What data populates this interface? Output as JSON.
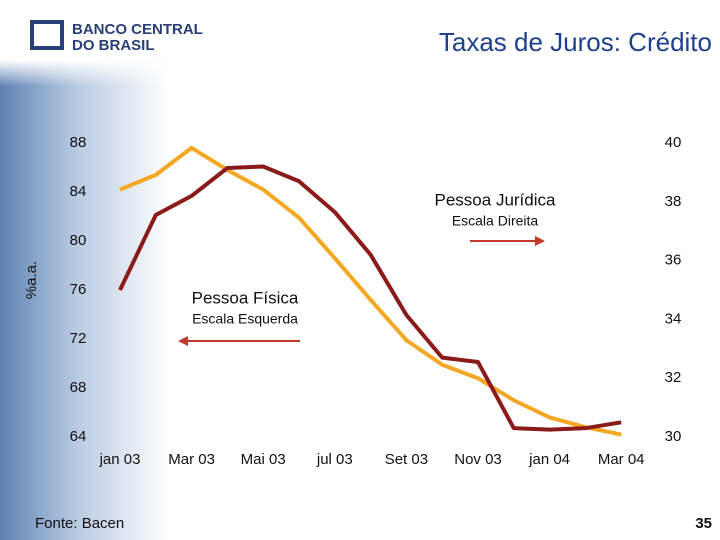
{
  "header": {
    "logo_line1": "BANCO CENTRAL",
    "logo_line2": "DO BRASIL"
  },
  "footer": {
    "source": "Fonte: Bacen",
    "page": "35"
  },
  "chart_data": {
    "type": "line",
    "title": "Taxas de Juros: Crédito",
    "ylabel": "%a.a.",
    "categories": [
      "jan 03",
      null,
      "Mar 03",
      null,
      "Mai 03",
      null,
      "jul 03",
      null,
      "Set 03",
      null,
      "Nov 03",
      null,
      "jan 04",
      null,
      "Mar 04"
    ],
    "ylim": [
      64,
      88
    ],
    "yticks": [
      64,
      68,
      72,
      76,
      80,
      84,
      88
    ],
    "y2lim": [
      30,
      40
    ],
    "y2ticks": [
      30,
      32,
      34,
      36,
      38,
      40
    ],
    "series": [
      {
        "name": "Pessoa Física",
        "scale_note": "Escala Esquerda",
        "color": "#f5a623",
        "axis": "y",
        "values": [
          84.2,
          85.4,
          87.6,
          85.8,
          84.2,
          81.9,
          78.6,
          75.2,
          71.9,
          69.9,
          68.8,
          67.0,
          65.6,
          64.8,
          64.2
        ]
      },
      {
        "name": "Pessoa Jurídica",
        "scale_note": "Escala Direita",
        "color": "#8b1a1a",
        "axis": "y2",
        "values": [
          35.0,
          37.55,
          38.2,
          39.15,
          39.2,
          38.7,
          37.65,
          36.2,
          34.15,
          32.7,
          32.55,
          30.3,
          30.25,
          30.3,
          30.5
        ]
      }
    ]
  }
}
